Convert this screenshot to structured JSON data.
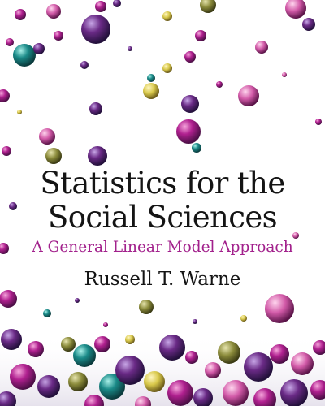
{
  "book": {
    "title_line_1": "Statistics for the",
    "title_line_2": "Social Sciences",
    "subtitle": "A General Linear Model Approach",
    "author": "Russell T. Warne"
  },
  "colors": {
    "title": "#141414",
    "subtitle": "#a2218c",
    "background": "#ffffff",
    "bubble_magenta": "#b0208f",
    "bubble_purple": "#6a2a86",
    "bubble_teal": "#1a8a88",
    "bubble_yellow": "#d8c84a",
    "bubble_olive": "#8a8a3a"
  },
  "artwork": {
    "description_icon": "floating-bubbles-illustration"
  }
}
